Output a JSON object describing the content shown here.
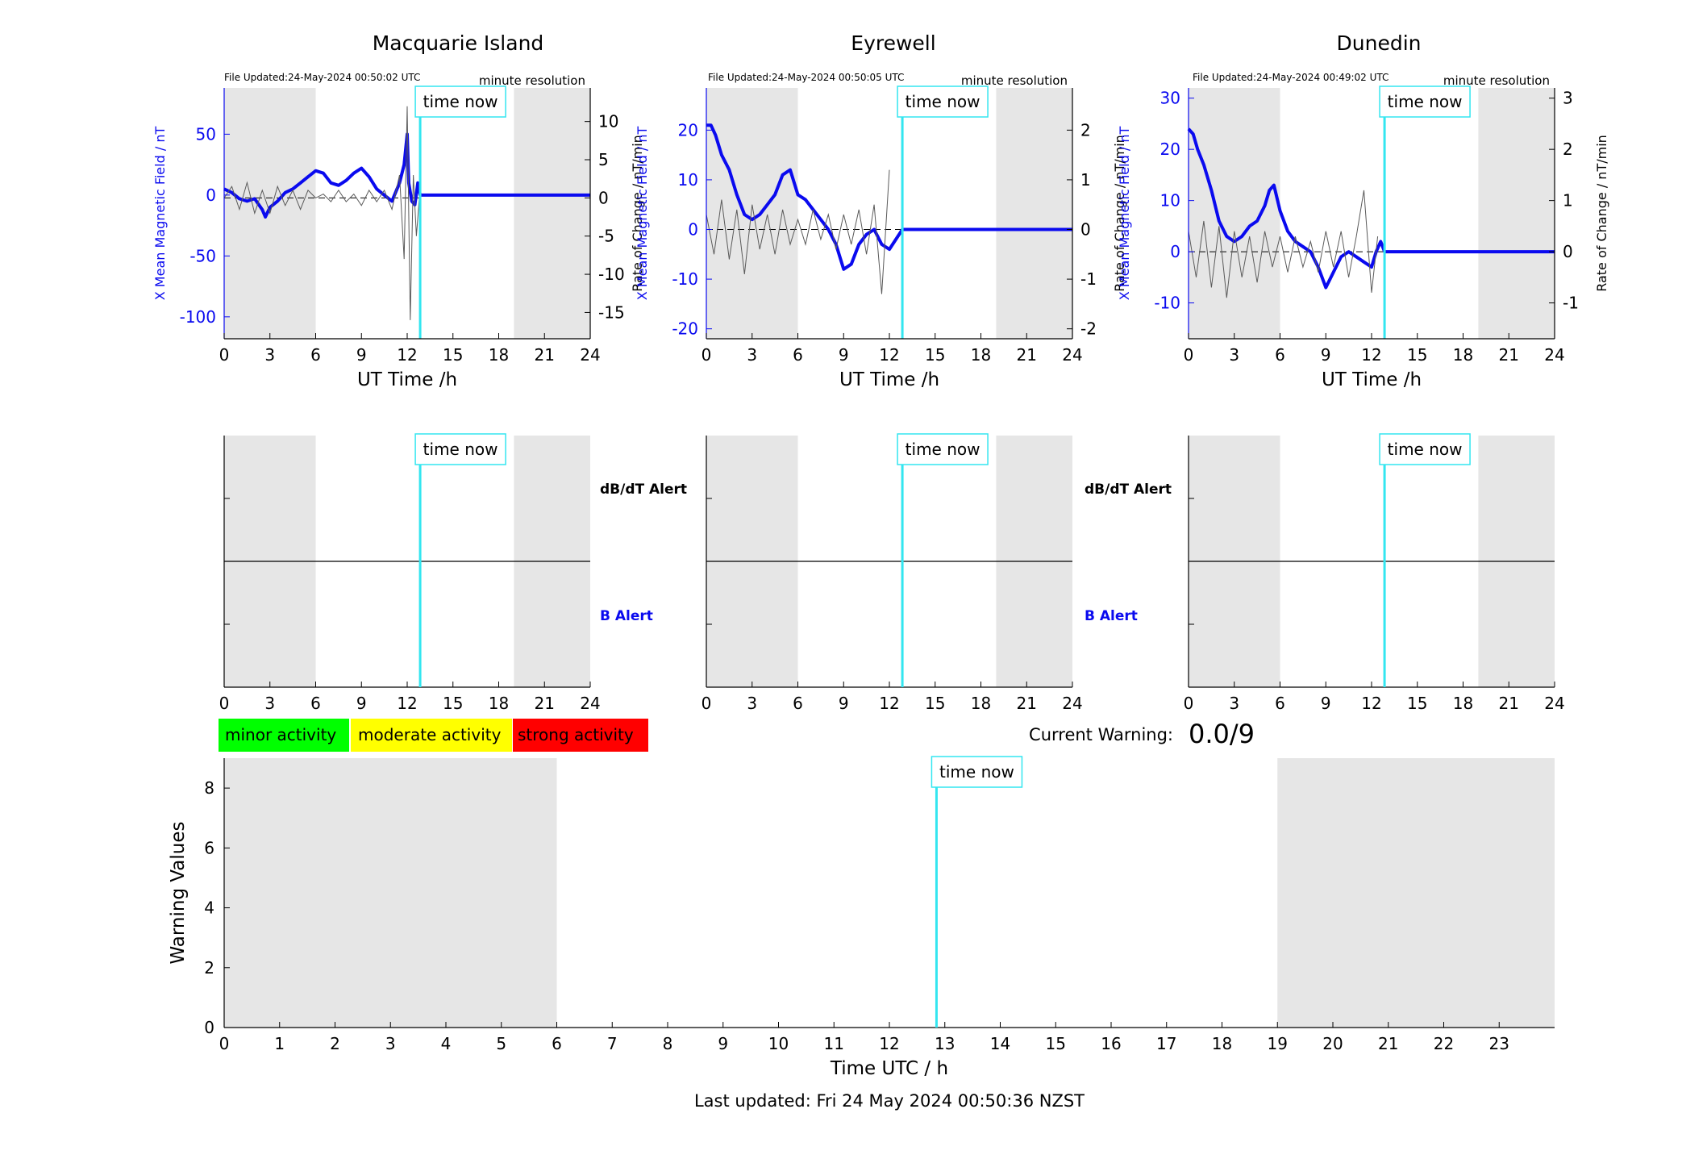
{
  "colors": {
    "field_line": "#0a0aef",
    "rate_line": "#5a5a5a",
    "time_now": "#33e6f0",
    "shade": "#e6e6e6",
    "minor": "#00ff00",
    "moderate": "#ffff00",
    "strong": "#ff0000",
    "axis": "#000000"
  },
  "time_now_label": "time now",
  "resolution_label": "minute resolution",
  "x_axis_label": "UT Time /h",
  "left_axis_label": "X Mean Magnetic Field / nT",
  "right_axis_label": "Rate of Change / nT/min",
  "dbdt_alert_label": "dB/dT Alert",
  "b_alert_label": "B Alert",
  "legend": {
    "minor": "minor activity",
    "moderate": "moderate activity",
    "strong": "strong activity"
  },
  "current_warning": {
    "label": "Current Warning:",
    "value": "0.0/9"
  },
  "footer": {
    "last_updated": "Last updated: Fri 24 May 2024 00:50:36 NZST"
  },
  "chart_data": [
    {
      "type": "line",
      "id": "macquarie",
      "title": "Macquarie Island",
      "file_updated": "File Updated:24-May-2024 00:50:02 UTC",
      "xlabel": "UT Time /h",
      "ylabel": "X Mean Magnetic Field / nT",
      "y2label": "Rate of Change / nT/min",
      "xlim": [
        0,
        24
      ],
      "xticks": [
        0,
        3,
        6,
        9,
        12,
        15,
        18,
        21,
        24
      ],
      "ylim": [
        -118,
        88
      ],
      "yticks": [
        -100,
        -50,
        0,
        50
      ],
      "y2lim": [
        -18.44,
        14.4
      ],
      "y2ticks": [
        -15,
        -10,
        -5,
        0,
        5,
        10
      ],
      "shade": [
        [
          0,
          6
        ],
        [
          19,
          24
        ]
      ],
      "time_now": 12.85,
      "series": [
        {
          "axis": "left",
          "x": [
            0,
            0.5,
            1,
            1.5,
            2,
            2.5,
            2.7,
            3,
            3.5,
            4,
            4.5,
            5,
            5.5,
            6,
            6.5,
            7,
            7.5,
            8,
            8.5,
            9,
            9.5,
            10,
            10.5,
            11,
            11.5,
            11.8,
            12,
            12.1,
            12.3,
            12.5,
            12.7,
            12.85,
            24
          ],
          "y": [
            5,
            2,
            -3,
            -5,
            -3,
            -12,
            -18,
            -10,
            -5,
            2,
            5,
            10,
            15,
            20,
            18,
            10,
            8,
            12,
            18,
            22,
            15,
            5,
            0,
            -5,
            10,
            25,
            50,
            10,
            -5,
            -8,
            10,
            0,
            0
          ]
        },
        {
          "axis": "right",
          "x": [
            0,
            0.5,
            1,
            1.5,
            2,
            2.5,
            3,
            3.5,
            4,
            4.5,
            5,
            5.5,
            6,
            6.5,
            7,
            7.5,
            8,
            8.5,
            9,
            9.5,
            10,
            10.5,
            11,
            11.5,
            11.8,
            12,
            12.2,
            12.4,
            12.6,
            12.8
          ],
          "y": [
            0,
            1.5,
            -1.5,
            2,
            -2,
            1,
            -2,
            1.5,
            -1,
            1,
            -1.5,
            1,
            0,
            0.5,
            -0.5,
            1,
            -0.5,
            0.5,
            -1,
            1,
            -0.5,
            1,
            -1.5,
            3,
            -8,
            12,
            -16,
            3,
            -5,
            0
          ]
        }
      ]
    },
    {
      "type": "line",
      "id": "eyrewell",
      "title": "Eyrewell",
      "file_updated": "File Updated:24-May-2024 00:50:05 UTC",
      "xlabel": "UT Time /h",
      "ylabel": "X Mean Magnetic Field / nT",
      "y2label": "Rate of Change / nT/min",
      "xlim": [
        0,
        24
      ],
      "xticks": [
        0,
        3,
        6,
        9,
        12,
        15,
        18,
        21,
        24
      ],
      "ylim": [
        -22,
        28.5
      ],
      "yticks": [
        -20,
        -10,
        0,
        10,
        20
      ],
      "y2lim": [
        -2.2,
        2.85
      ],
      "y2ticks": [
        -2,
        -1,
        0,
        1,
        2
      ],
      "shade": [
        [
          0,
          6
        ],
        [
          19,
          24
        ]
      ],
      "time_now": 12.85,
      "series": [
        {
          "axis": "left",
          "x": [
            0,
            0.3,
            0.6,
            1,
            1.5,
            2,
            2.5,
            3,
            3.5,
            4,
            4.5,
            5,
            5.5,
            6,
            6.5,
            7,
            7.5,
            8,
            8.5,
            9,
            9.5,
            10,
            10.5,
            11,
            11.5,
            12,
            12.85,
            24
          ],
          "y": [
            21,
            21,
            19,
            15,
            12,
            7,
            3,
            2,
            3,
            5,
            7,
            11,
            12,
            7,
            6,
            4,
            2,
            0,
            -3,
            -8,
            -7,
            -3,
            -1,
            0,
            -3,
            -4,
            0,
            0
          ]
        },
        {
          "axis": "right",
          "x": [
            0,
            0.5,
            1,
            1.5,
            2,
            2.5,
            3,
            3.5,
            4,
            4.5,
            5,
            5.5,
            6,
            6.5,
            7,
            7.5,
            8,
            8.5,
            9,
            9.5,
            10,
            10.5,
            11,
            11.5,
            12
          ],
          "y": [
            0.3,
            -0.5,
            0.6,
            -0.6,
            0.4,
            -0.9,
            0.5,
            -0.4,
            0.3,
            -0.5,
            0.4,
            -0.3,
            0.2,
            -0.3,
            0.4,
            -0.2,
            0.3,
            -0.4,
            0.3,
            -0.3,
            0.4,
            -0.5,
            0.5,
            -1.3,
            1.2
          ]
        }
      ]
    },
    {
      "type": "line",
      "id": "dunedin",
      "title": "Dunedin",
      "file_updated": "File Updated:24-May-2024 00:49:02 UTC",
      "xlabel": "UT Time /h",
      "ylabel": "X Mean Magnetic Field / nT",
      "y2label": "Rate of Change / nT/min",
      "xlim": [
        0,
        24
      ],
      "xticks": [
        0,
        3,
        6,
        9,
        12,
        15,
        18,
        21,
        24
      ],
      "ylim": [
        -17,
        32
      ],
      "yticks": [
        -10,
        0,
        10,
        20,
        30
      ],
      "y2lim": [
        -1.7,
        3.2
      ],
      "y2ticks": [
        -1,
        0,
        1,
        2,
        3
      ],
      "shade": [
        [
          0,
          6
        ],
        [
          19,
          24
        ]
      ],
      "time_now": 12.85,
      "series": [
        {
          "axis": "left",
          "x": [
            0,
            0.3,
            0.6,
            1,
            1.5,
            2,
            2.5,
            3,
            3.5,
            4,
            4.5,
            5,
            5.3,
            5.6,
            6,
            6.5,
            7,
            7.5,
            8,
            8.5,
            9,
            9.5,
            10,
            10.5,
            11,
            11.5,
            12,
            12.3,
            12.6,
            12.85,
            24
          ],
          "y": [
            24,
            23,
            20,
            17,
            12,
            6,
            3,
            2,
            3,
            5,
            6,
            9,
            12,
            13,
            8,
            4,
            2,
            1,
            0,
            -3,
            -7,
            -4,
            -1,
            0,
            -1,
            -2,
            -3,
            0,
            2,
            0,
            0
          ]
        },
        {
          "axis": "right",
          "x": [
            0,
            0.5,
            1,
            1.5,
            2,
            2.5,
            3,
            3.5,
            4,
            4.5,
            5,
            5.5,
            6,
            6.5,
            7,
            7.5,
            8,
            8.5,
            9,
            9.5,
            10,
            10.5,
            11,
            11.5,
            12,
            12.4
          ],
          "y": [
            0.4,
            -0.5,
            0.6,
            -0.7,
            0.5,
            -0.9,
            0.4,
            -0.5,
            0.3,
            -0.6,
            0.4,
            -0.3,
            0.3,
            -0.4,
            0.3,
            -0.3,
            0.2,
            -0.4,
            0.4,
            -0.3,
            0.4,
            -0.5,
            0.3,
            1.2,
            -0.8,
            0.3
          ]
        }
      ]
    },
    {
      "type": "line",
      "id": "alerts-macquarie",
      "xlim": [
        0,
        24
      ],
      "xticks": [
        0,
        3,
        6,
        9,
        12,
        15,
        18,
        21,
        24
      ],
      "shade": [
        [
          0,
          6
        ],
        [
          19,
          24
        ]
      ],
      "time_now": 12.85
    },
    {
      "type": "line",
      "id": "alerts-eyrewell",
      "xlim": [
        0,
        24
      ],
      "xticks": [
        0,
        3,
        6,
        9,
        12,
        15,
        18,
        21,
        24
      ],
      "shade": [
        [
          0,
          6
        ],
        [
          19,
          24
        ]
      ],
      "time_now": 12.85
    },
    {
      "type": "line",
      "id": "alerts-dunedin",
      "xlim": [
        0,
        24
      ],
      "xticks": [
        0,
        3,
        6,
        9,
        12,
        15,
        18,
        21,
        24
      ],
      "shade": [
        [
          0,
          6
        ],
        [
          19,
          24
        ]
      ],
      "time_now": 12.85
    },
    {
      "type": "line",
      "id": "warning",
      "xlabel": "Time UTC / h",
      "ylabel": "Warning Values",
      "xlim": [
        0,
        24
      ],
      "xticks": [
        0,
        1,
        2,
        3,
        4,
        5,
        6,
        7,
        8,
        9,
        10,
        11,
        12,
        13,
        14,
        15,
        16,
        17,
        18,
        19,
        20,
        21,
        22,
        23
      ],
      "ylim": [
        0,
        9
      ],
      "yticks": [
        0,
        2,
        4,
        6,
        8
      ],
      "shade": [
        [
          0,
          6
        ],
        [
          19,
          24
        ]
      ],
      "time_now": 12.85,
      "series": []
    }
  ]
}
